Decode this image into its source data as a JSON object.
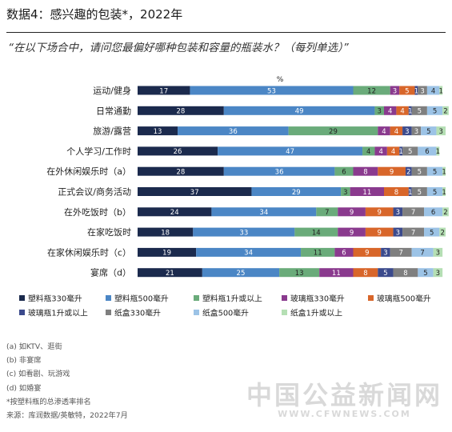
{
  "header": {
    "title": "数据4：感兴趣的包装*，2022年",
    "question": "“在以下场合中，请问您最偏好哪种包装和容量的瓶装水？（每列单选）”"
  },
  "notes": [
    "(a) 如KTV、逛街",
    "(b) 非宴席",
    "(c) 如看剧、玩游戏",
    "(d) 如婚宴",
    "*按塑料瓶的总渗透率排名",
    "来源：库润数据/英敏特，2022年7月"
  ],
  "watermark": {
    "brand": "中国公益新闻网",
    "url": "WWW.CFWNEWS.COM"
  },
  "chart_data": {
    "type": "bar",
    "orientation": "horizontal-stacked-100",
    "unit_label": "%",
    "xlim": [
      0,
      100
    ],
    "categories": [
      "运动/健身",
      "日常通勤",
      "旅游/露营",
      "个人学习/工作时",
      "在外休闲娱乐时（a）",
      "正式会议/商务活动",
      "在外吃饭时（b）",
      "在家吃饭时",
      "在家休闲娱乐时（c）",
      "宴席（d）"
    ],
    "series": [
      {
        "name": "塑料瓶330毫升",
        "color": "#1b2a4d",
        "values": [
          17,
          28,
          13,
          26,
          28,
          37,
          24,
          18,
          19,
          21
        ]
      },
      {
        "name": "塑料瓶500毫升",
        "color": "#4b86c5",
        "values": [
          53,
          49,
          36,
          47,
          36,
          29,
          34,
          33,
          34,
          25
        ]
      },
      {
        "name": "塑料瓶1升或以上",
        "color": "#6aab7a",
        "values": [
          12,
          3,
          29,
          4,
          6,
          3,
          7,
          14,
          11,
          13
        ]
      },
      {
        "name": "玻璃瓶330毫升",
        "color": "#8a3a8e",
        "values": [
          3,
          4,
          4,
          4,
          8,
          11,
          9,
          9,
          6,
          11
        ]
      },
      {
        "name": "玻璃瓶500毫升",
        "color": "#d8662a",
        "values": [
          5,
          4,
          4,
          4,
          9,
          8,
          9,
          9,
          9,
          8
        ]
      },
      {
        "name": "玻璃瓶1升或以上",
        "color": "#3b4a8c",
        "values": [
          1,
          1,
          3,
          1,
          2,
          1,
          3,
          3,
          3,
          5
        ]
      },
      {
        "name": "纸盒330毫升",
        "color": "#7f7f7f",
        "values": [
          3,
          5,
          3,
          5,
          5,
          5,
          7,
          7,
          7,
          8
        ]
      },
      {
        "name": "纸盒500毫升",
        "color": "#9cc3e6",
        "values": [
          4,
          5,
          5,
          6,
          5,
          5,
          6,
          5,
          7,
          5
        ]
      },
      {
        "name": "纸盒1升或以上",
        "color": "#b5dfb4",
        "values": [
          1,
          2,
          3,
          1,
          1,
          1,
          2,
          2,
          3,
          3
        ]
      }
    ],
    "legend_position": "bottom",
    "grid": false
  }
}
